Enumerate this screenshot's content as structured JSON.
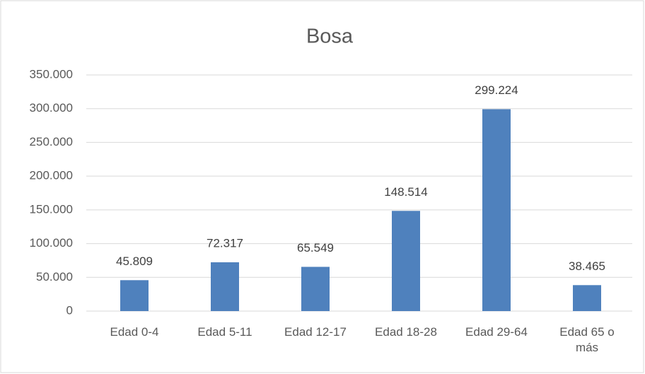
{
  "chart_data": {
    "type": "bar",
    "title": "Bosa",
    "categories": [
      "Edad 0-4",
      "Edad 5-11",
      "Edad 12-17",
      "Edad 18-28",
      "Edad 29-64",
      "Edad 65 o más"
    ],
    "values": [
      45809,
      72317,
      65549,
      148514,
      299224,
      38465
    ],
    "value_labels": [
      "45.809",
      "72.317",
      "65.549",
      "148.514",
      "299.224",
      "38.465"
    ],
    "color": "#4f81bd",
    "ylim": [
      0,
      350000
    ],
    "yticks": [
      0,
      {
        "value": 50000,
        "label": "50.000"
      },
      {
        "value": 100000,
        "label": "100.000"
      },
      {
        "value": 150000,
        "label": "150.000"
      },
      {
        "value": 200000,
        "label": "200.000"
      },
      {
        "value": 250000,
        "label": "250.000"
      },
      {
        "value": 300000,
        "label": "300.000"
      },
      {
        "value": 350000,
        "label": "350.000"
      }
    ],
    "grid": true
  }
}
